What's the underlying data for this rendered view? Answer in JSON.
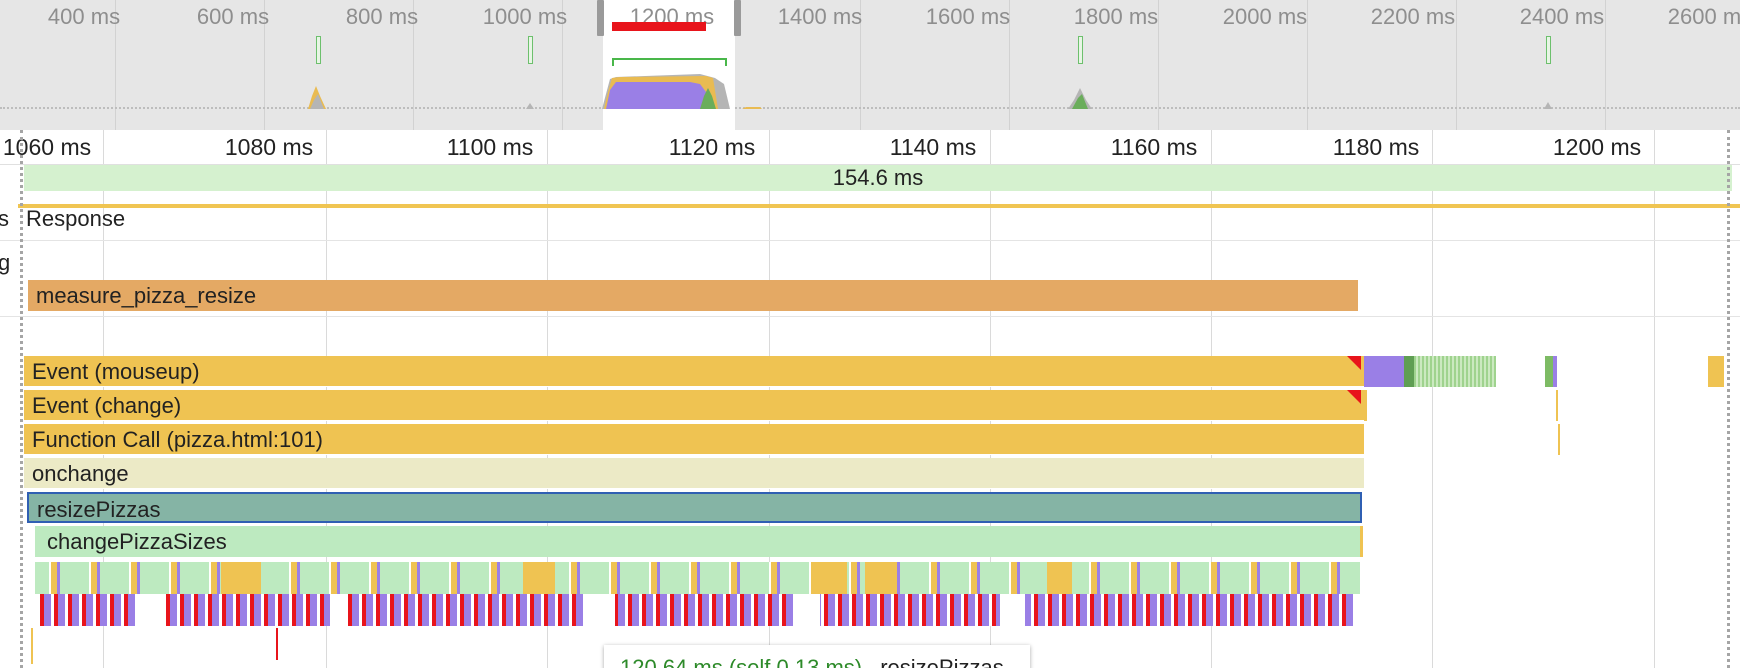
{
  "overview": {
    "ticks": [
      "400 ms",
      "600 ms",
      "800 ms",
      "1000 ms",
      "1200 ms",
      "1400 ms",
      "1600 ms",
      "1800 ms",
      "2000 ms",
      "2200 ms",
      "2400 ms",
      "2600 ms"
    ]
  },
  "ruler": {
    "ticks": [
      "1060 ms",
      "1080 ms",
      "1100 ms",
      "1120 ms",
      "1140 ms",
      "1160 ms",
      "1180 ms",
      "1200 ms"
    ]
  },
  "frames": {
    "duration": "154.6 ms"
  },
  "tracks": {
    "interactions_label_fragment": "s",
    "interactions_value": "Response",
    "animation_label_fragment": "g"
  },
  "user_timing": {
    "measure": "measure_pizza_resize"
  },
  "flame": [
    {
      "label": "Event (mouseup)"
    },
    {
      "label": "Event (change)"
    },
    {
      "label": "Function Call (pizza.html:101)"
    },
    {
      "label": "onchange"
    },
    {
      "label": "resizePizzas"
    },
    {
      "label": "changePizzaSizes"
    }
  ],
  "tooltip": {
    "time": "120.64 ms (self 0.13 ms)",
    "name": "resizePizzas"
  },
  "colors": {
    "scripting": "#efc352",
    "rendering": "#9a7fe6",
    "painting": "#7dbb64",
    "user_timing": "#e4a964",
    "frame": "#d5f1cf",
    "warning": "#e8141b",
    "selected_border": "#2f5fb3"
  }
}
